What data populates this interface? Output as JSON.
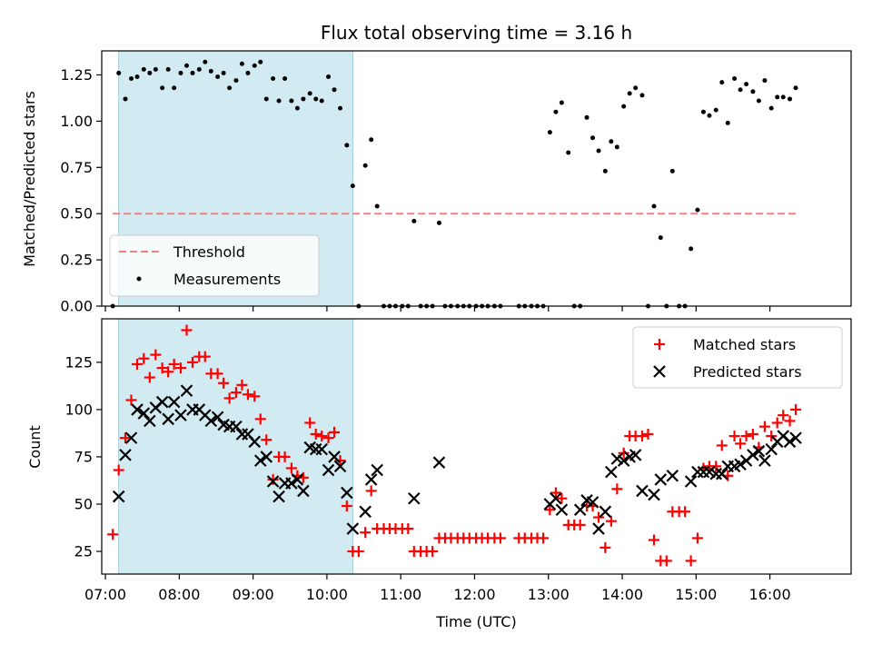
{
  "chart_data": [
    {
      "type": "scatter",
      "title": "Flux total observing time = 3.16 h",
      "xlabel": "",
      "ylabel": "Matched/Predicted stars",
      "ylim": [
        0.0,
        1.38
      ],
      "yticks": [
        0.0,
        0.25,
        0.5,
        0.75,
        1.0,
        1.25
      ],
      "ytick_labels": [
        "0.00",
        "0.25",
        "0.50",
        "0.75",
        "1.00",
        "1.25"
      ],
      "xlim_hours": [
        6.95,
        17.1
      ],
      "xticks_hours": [
        7,
        8,
        9,
        10,
        11,
        12,
        13,
        14,
        15,
        16
      ],
      "highlight_span_hours": [
        7.18,
        10.35
      ],
      "threshold": {
        "name": "Threshold",
        "y": 0.5,
        "x_hours": [
          7.1,
          16.4
        ],
        "color": "#f08080",
        "style": "dashed"
      },
      "legend_position": "lower-left",
      "grid": false,
      "series": [
        {
          "name": "Measurements",
          "color": "#000000",
          "marker": "dot",
          "x_hours": [
            7.1,
            7.18,
            7.27,
            7.35,
            7.43,
            7.52,
            7.6,
            7.68,
            7.77,
            7.85,
            7.93,
            8.02,
            8.1,
            8.18,
            8.27,
            8.35,
            8.43,
            8.52,
            8.6,
            8.68,
            8.77,
            8.85,
            8.93,
            9.02,
            9.1,
            9.18,
            9.27,
            9.35,
            9.43,
            9.52,
            9.6,
            9.68,
            9.77,
            9.85,
            9.93,
            10.02,
            10.1,
            10.18,
            10.27,
            10.35,
            10.43,
            10.52,
            10.6,
            10.68,
            10.77,
            10.85,
            10.93,
            11.02,
            11.1,
            11.18,
            11.27,
            11.35,
            11.43,
            11.52,
            11.6,
            11.68,
            11.77,
            11.85,
            11.93,
            12.02,
            12.1,
            12.18,
            12.27,
            12.35,
            12.6,
            12.68,
            12.77,
            12.85,
            12.93,
            13.02,
            13.1,
            13.18,
            13.27,
            13.35,
            13.43,
            13.52,
            13.6,
            13.68,
            13.77,
            13.85,
            13.93,
            14.02,
            14.1,
            14.18,
            14.27,
            14.35,
            14.43,
            14.52,
            14.6,
            14.68,
            14.77,
            14.85,
            14.93,
            15.02,
            15.1,
            15.18,
            15.27,
            15.35,
            15.43,
            15.52,
            15.6,
            15.68,
            15.77,
            15.85,
            15.93,
            16.02,
            16.1,
            16.18,
            16.27,
            16.35
          ],
          "y": [
            0.0,
            1.26,
            1.12,
            1.23,
            1.24,
            1.28,
            1.26,
            1.28,
            1.18,
            1.28,
            1.18,
            1.26,
            1.3,
            1.26,
            1.28,
            1.32,
            1.27,
            1.24,
            1.26,
            1.18,
            1.22,
            1.31,
            1.26,
            1.3,
            1.32,
            1.12,
            1.23,
            1.11,
            1.23,
            1.11,
            1.07,
            1.12,
            1.15,
            1.12,
            1.11,
            1.24,
            1.17,
            1.07,
            0.87,
            0.65,
            0.0,
            0.76,
            0.9,
            0.54,
            0.0,
            0.0,
            0.0,
            0.0,
            0.0,
            0.46,
            0.0,
            0.0,
            0.0,
            0.45,
            0.0,
            0.0,
            0.0,
            0.0,
            0.0,
            0.0,
            0.0,
            0.0,
            0.0,
            0.0,
            0.0,
            0.0,
            0.0,
            0.0,
            0.0,
            0.94,
            1.05,
            1.1,
            0.83,
            0.0,
            0.0,
            1.02,
            0.91,
            0.84,
            0.73,
            0.89,
            0.86,
            1.08,
            1.15,
            1.18,
            1.14,
            0.0,
            0.54,
            0.37,
            0.0,
            0.73,
            0.0,
            0.0,
            0.31,
            0.52,
            1.05,
            1.03,
            1.06,
            1.21,
            0.99,
            1.23,
            1.17,
            1.2,
            1.16,
            1.11,
            1.22,
            1.07,
            1.13,
            1.13,
            1.12,
            1.18
          ]
        }
      ]
    },
    {
      "type": "scatter",
      "title": "",
      "xlabel": "Time (UTC)",
      "ylabel": "Count",
      "ylim": [
        13,
        148
      ],
      "yticks": [
        25,
        50,
        75,
        100,
        125
      ],
      "ytick_labels": [
        "25",
        "50",
        "75",
        "100",
        "125"
      ],
      "xlim_hours": [
        6.95,
        17.1
      ],
      "xticks_hours": [
        7,
        8,
        9,
        10,
        11,
        12,
        13,
        14,
        15,
        16
      ],
      "xtick_labels": [
        "07:00",
        "08:00",
        "09:00",
        "10:00",
        "11:00",
        "12:00",
        "13:00",
        "14:00",
        "15:00",
        "16:00"
      ],
      "highlight_span_hours": [
        7.18,
        10.35
      ],
      "legend_position": "top-right",
      "grid": false,
      "series": [
        {
          "name": "Matched stars",
          "color": "#ff0000",
          "marker": "plus",
          "x_hours": [
            7.1,
            7.18,
            7.27,
            7.35,
            7.43,
            7.52,
            7.6,
            7.68,
            7.77,
            7.85,
            7.93,
            8.02,
            8.1,
            8.18,
            8.27,
            8.35,
            8.43,
            8.52,
            8.6,
            8.68,
            8.77,
            8.85,
            8.93,
            9.02,
            9.1,
            9.18,
            9.27,
            9.35,
            9.43,
            9.52,
            9.6,
            9.68,
            9.77,
            9.85,
            9.93,
            10.02,
            10.1,
            10.18,
            10.27,
            10.35,
            10.43,
            10.52,
            10.6,
            10.68,
            10.77,
            10.85,
            10.93,
            11.02,
            11.1,
            11.18,
            11.27,
            11.35,
            11.43,
            11.52,
            11.6,
            11.68,
            11.77,
            11.85,
            11.93,
            12.02,
            12.1,
            12.18,
            12.27,
            12.35,
            12.6,
            12.68,
            12.77,
            12.85,
            12.93,
            13.02,
            13.1,
            13.18,
            13.27,
            13.35,
            13.43,
            13.52,
            13.6,
            13.68,
            13.77,
            13.85,
            13.93,
            14.02,
            14.1,
            14.18,
            14.27,
            14.35,
            14.43,
            14.52,
            14.6,
            14.68,
            14.77,
            14.85,
            14.93,
            15.02,
            15.1,
            15.18,
            15.27,
            15.35,
            15.43,
            15.52,
            15.6,
            15.68,
            15.77,
            15.85,
            15.93,
            16.02,
            16.1,
            16.18,
            16.27,
            16.35
          ],
          "y": [
            34,
            68,
            85,
            105,
            124,
            127,
            117,
            129,
            122,
            120,
            124,
            122,
            142,
            125,
            128,
            128,
            119,
            119,
            114,
            106,
            109,
            113,
            108,
            107,
            95,
            84,
            63,
            75,
            75,
            69,
            65,
            64,
            93,
            87,
            86,
            85,
            88,
            73,
            49,
            25,
            25,
            35,
            57,
            37,
            37,
            37,
            37,
            37,
            37,
            25,
            25,
            25,
            25,
            32,
            32,
            32,
            32,
            32,
            32,
            32,
            32,
            32,
            32,
            32,
            32,
            32,
            32,
            32,
            32,
            47,
            56,
            53,
            39,
            39,
            39,
            49,
            49,
            43,
            27,
            41,
            58,
            77,
            86,
            86,
            86,
            87,
            31,
            20,
            20,
            46,
            46,
            46,
            20,
            32,
            69,
            70,
            70,
            81,
            65,
            86,
            82,
            86,
            87,
            80,
            91,
            86,
            93,
            97,
            94,
            100
          ]
        },
        {
          "name": "Predicted stars",
          "color": "#000000",
          "marker": "x",
          "x_hours": [
            7.18,
            7.27,
            7.35,
            7.43,
            7.52,
            7.6,
            7.68,
            7.77,
            7.85,
            7.93,
            8.02,
            8.1,
            8.18,
            8.27,
            8.35,
            8.43,
            8.52,
            8.6,
            8.68,
            8.77,
            8.85,
            8.93,
            9.02,
            9.1,
            9.18,
            9.27,
            9.35,
            9.43,
            9.52,
            9.6,
            9.68,
            9.77,
            9.85,
            9.93,
            10.02,
            10.1,
            10.18,
            10.27,
            10.35,
            10.52,
            10.6,
            10.68,
            11.18,
            11.52,
            13.02,
            13.1,
            13.18,
            13.43,
            13.52,
            13.6,
            13.68,
            13.77,
            13.85,
            13.93,
            14.02,
            14.1,
            14.18,
            14.27,
            14.43,
            14.52,
            14.68,
            14.93,
            15.02,
            15.1,
            15.18,
            15.27,
            15.35,
            15.43,
            15.52,
            15.6,
            15.68,
            15.77,
            15.85,
            15.93,
            16.02,
            16.1,
            16.18,
            16.27,
            16.35
          ],
          "y": [
            54,
            76,
            85,
            100,
            98,
            94,
            101,
            104,
            95,
            104,
            97,
            110,
            100,
            100,
            97,
            94,
            96,
            92,
            91,
            91,
            87,
            87,
            83,
            73,
            75,
            62,
            54,
            61,
            61,
            63,
            57,
            80,
            79,
            79,
            68,
            75,
            70,
            56,
            37,
            46,
            63,
            68,
            53,
            72,
            50,
            53,
            47,
            47,
            52,
            51,
            37,
            46,
            67,
            74,
            73,
            75,
            76,
            57,
            55,
            63,
            65,
            62,
            67,
            67,
            67,
            66,
            66,
            70,
            70,
            71,
            73,
            76,
            78,
            73,
            79,
            83,
            86,
            83,
            85
          ]
        }
      ]
    }
  ]
}
